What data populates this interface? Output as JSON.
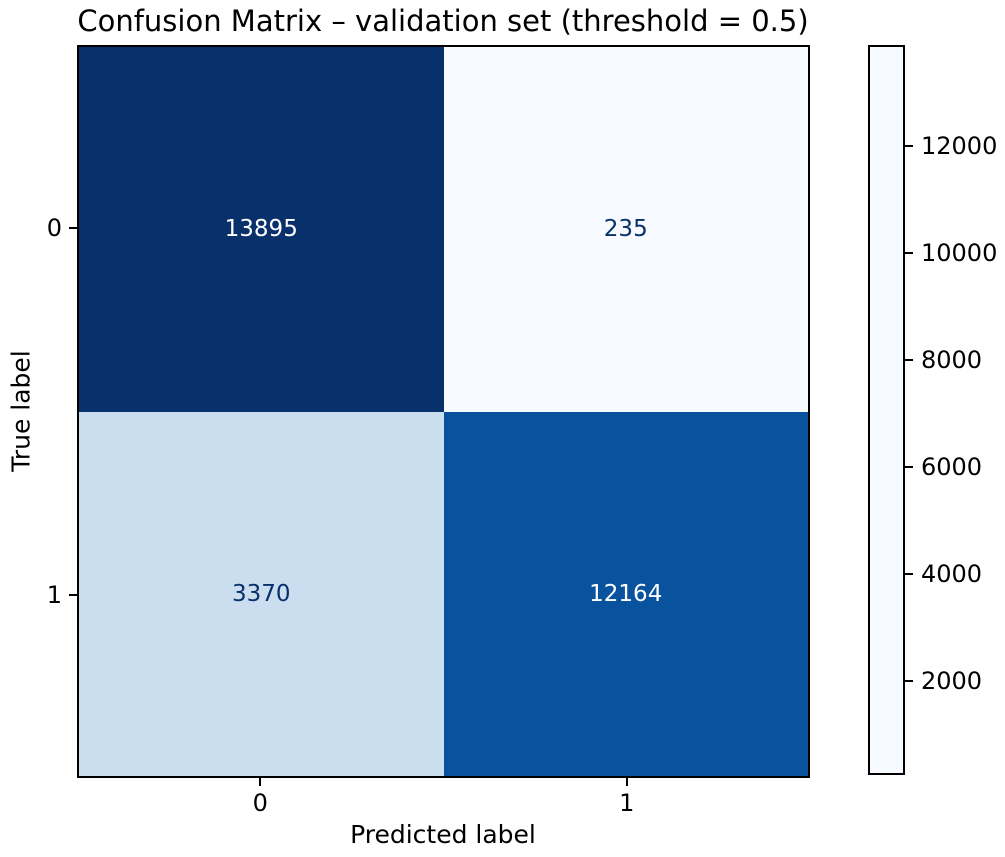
{
  "figure": {
    "background": "#ffffff"
  },
  "chart_data": {
    "type": "heatmap",
    "title": "Confusion Matrix – validation set (threshold = 0.5)",
    "xlabel": "Predicted label",
    "ylabel": "True label",
    "x_tick_labels": [
      "0",
      "1"
    ],
    "y_tick_labels": [
      "0",
      "1"
    ],
    "matrix": [
      [
        13895,
        235
      ],
      [
        3370,
        12164
      ]
    ],
    "cell_labels": [
      [
        "13895",
        "235"
      ],
      [
        "3370",
        "12164"
      ]
    ],
    "colormap": "Blues",
    "vmin": 235,
    "vmax": 13895,
    "colorbar_ticks": [
      2000,
      4000,
      6000,
      8000,
      10000,
      12000
    ],
    "legend_position": "right-colorbar",
    "grid": false,
    "cell_colors": [
      [
        "#08306b",
        "#f7fbff"
      ],
      [
        "#cadef0",
        "#09529d"
      ]
    ],
    "cell_text_colors": [
      [
        "#ffffff",
        "#08306b"
      ],
      [
        "#08306b",
        "#ffffff"
      ]
    ],
    "colormap_stops": [
      {
        "v": 0.0,
        "c": "#f7fbff"
      },
      {
        "v": 0.125,
        "c": "#deebf7"
      },
      {
        "v": 0.25,
        "c": "#c6dbef"
      },
      {
        "v": 0.375,
        "c": "#9ecae1"
      },
      {
        "v": 0.5,
        "c": "#6baed6"
      },
      {
        "v": 0.625,
        "c": "#4292c6"
      },
      {
        "v": 0.75,
        "c": "#2171b5"
      },
      {
        "v": 0.875,
        "c": "#08519c"
      },
      {
        "v": 1.0,
        "c": "#08306b"
      }
    ]
  }
}
